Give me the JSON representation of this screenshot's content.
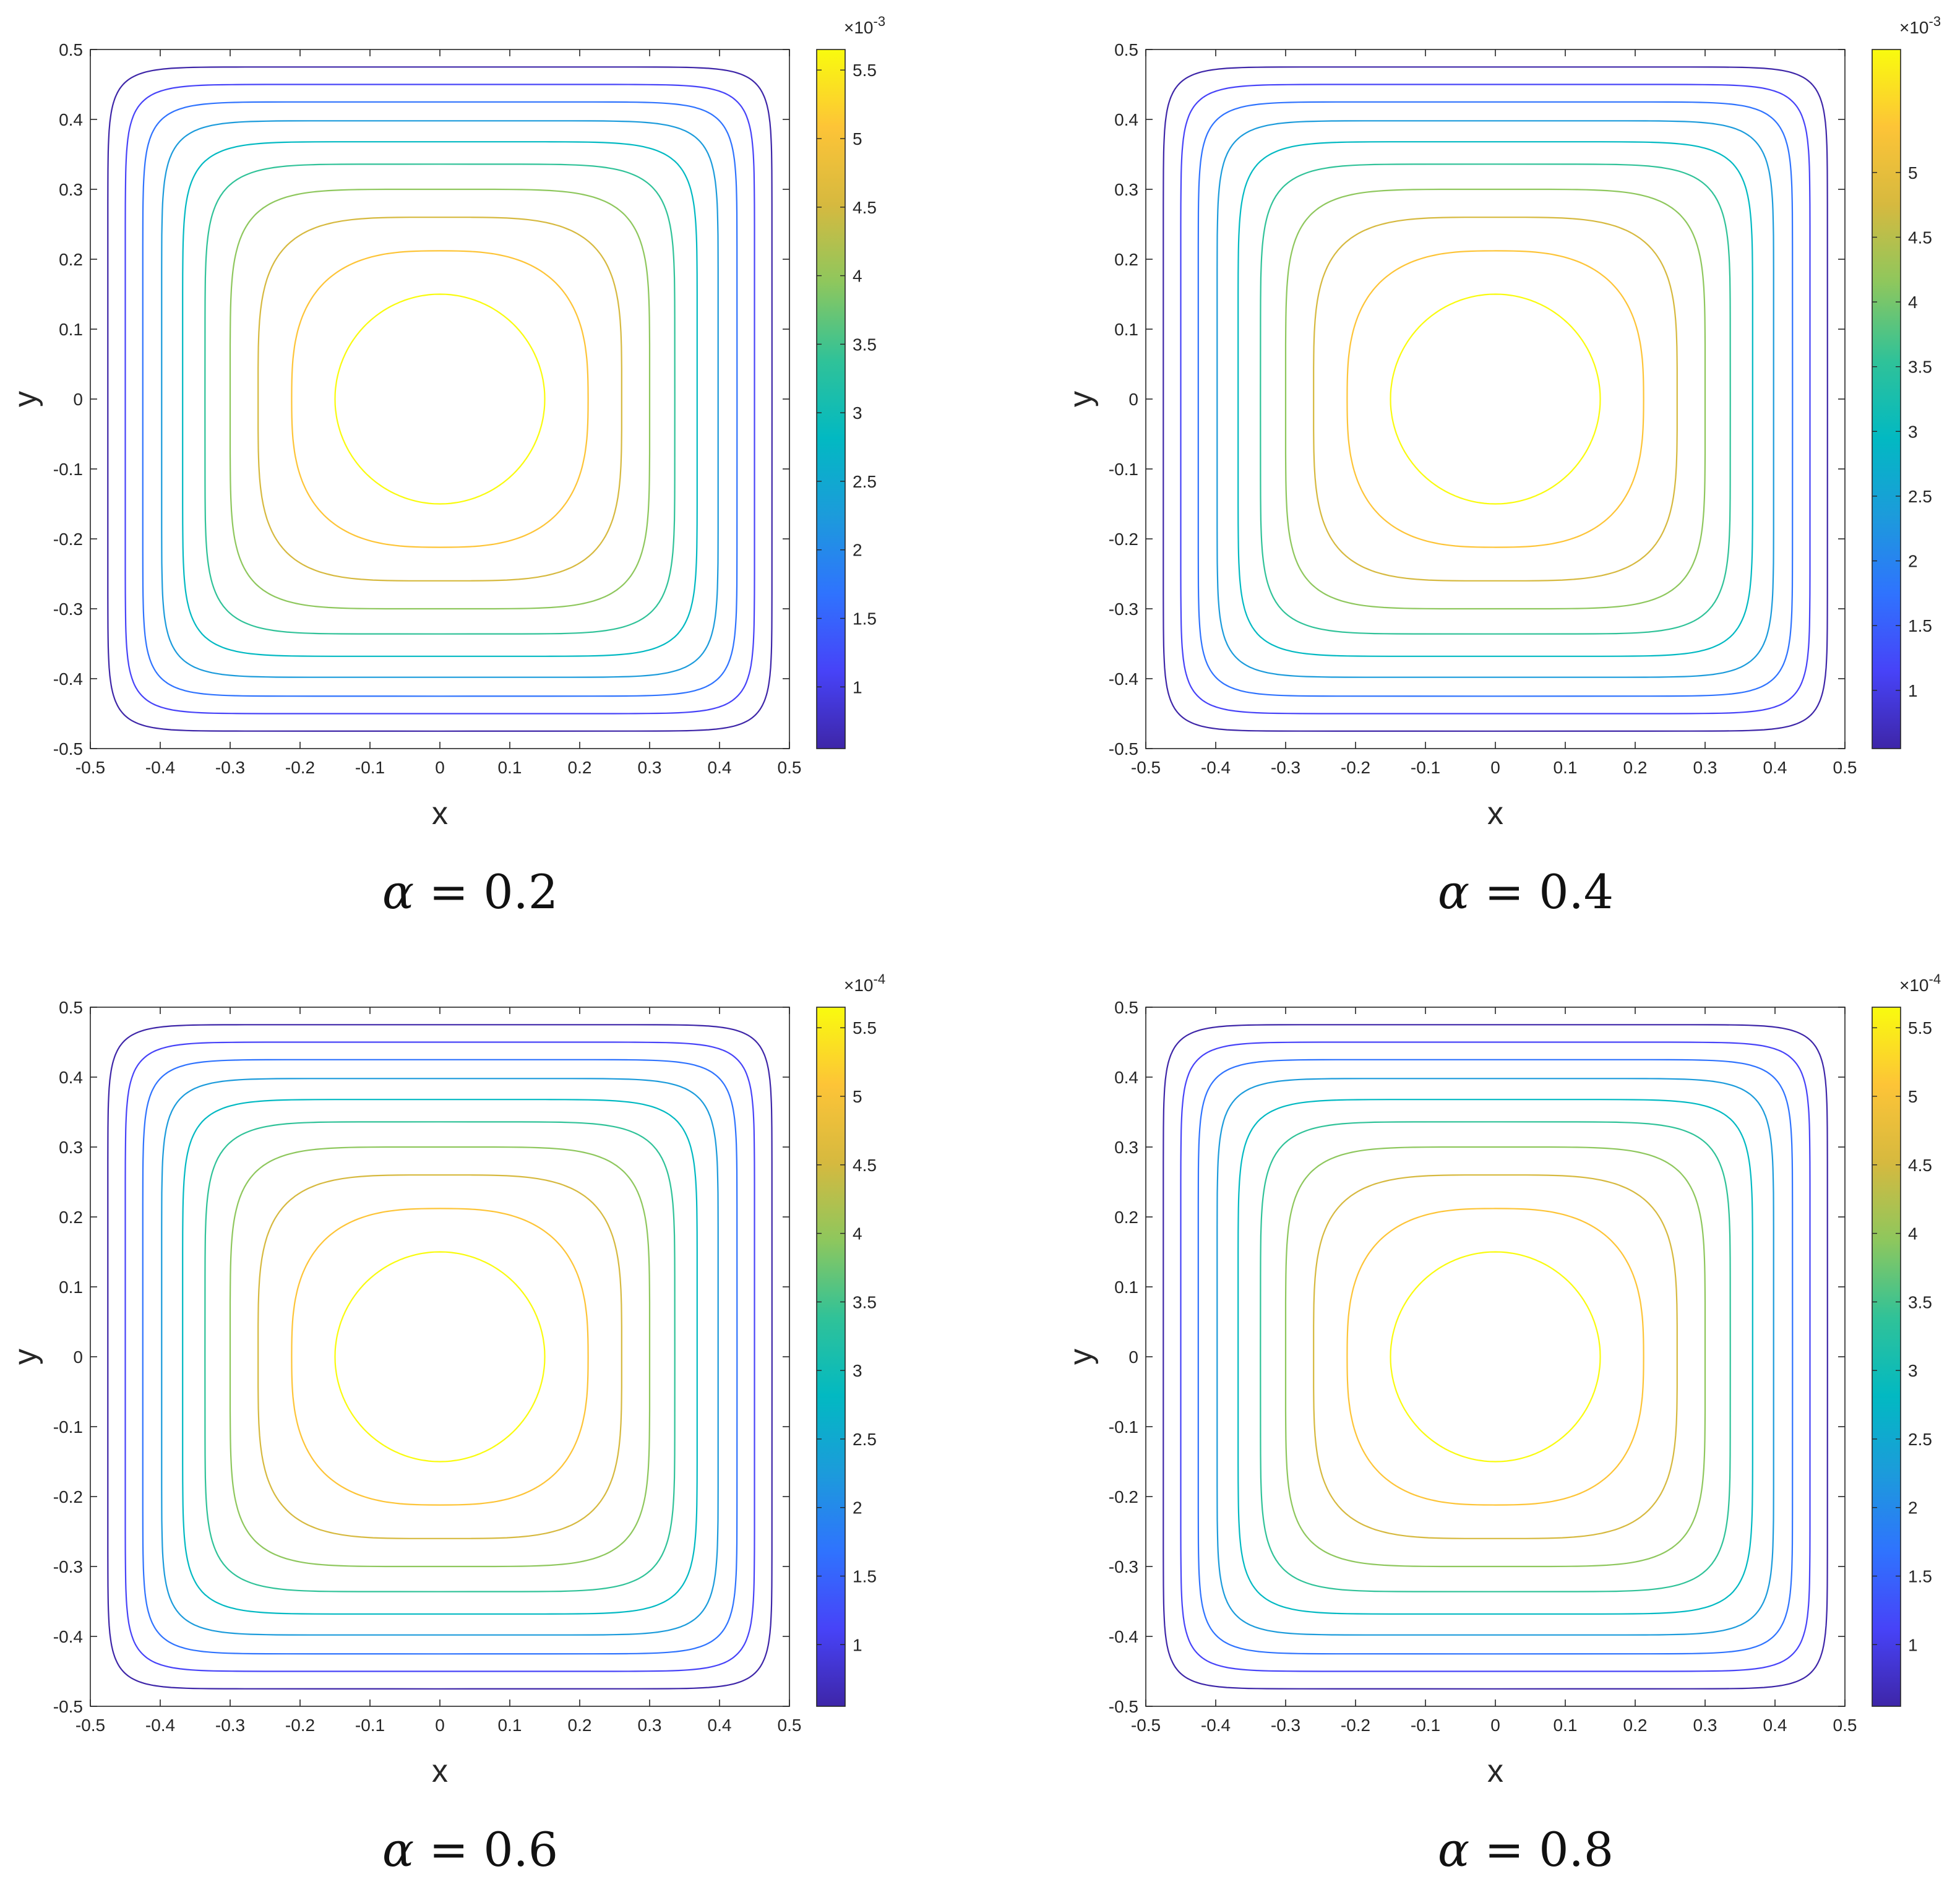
{
  "colors": {
    "parula": [
      "#3e26a8",
      "#4743f8",
      "#2f73fe",
      "#1c9bdb",
      "#02b9c2",
      "#30c298",
      "#8ec75d",
      "#d6b93f",
      "#fdc437",
      "#f9fb0e"
    ],
    "axis": "#262626",
    "background": "#ffffff"
  },
  "chart_data": [
    {
      "type": "contour",
      "caption": {
        "symbol": "α",
        "text": "= 0.2"
      },
      "xlabel": "x",
      "ylabel": "y",
      "xlim": [
        -0.5,
        0.5
      ],
      "ylim": [
        -0.5,
        0.5
      ],
      "xticks": [
        "-0.5",
        "-0.4",
        "-0.3",
        "-0.2",
        "-0.1",
        "0",
        "0.1",
        "0.2",
        "0.3",
        "0.4",
        "0.5"
      ],
      "yticks": [
        "0.5",
        "0.4",
        "0.3",
        "0.2",
        "0.1",
        "0",
        "-0.1",
        "-0.2",
        "-0.3",
        "-0.4",
        "-0.5"
      ],
      "colorbar": {
        "multiplier": "×10",
        "exponent": "-3",
        "range": [
          0.55,
          5.65
        ],
        "ticks": [
          {
            "value": 1,
            "label": "1"
          },
          {
            "value": 1.5,
            "label": "1.5"
          },
          {
            "value": 2,
            "label": "2"
          },
          {
            "value": 2.5,
            "label": "2.5"
          },
          {
            "value": 3,
            "label": "3"
          },
          {
            "value": 3.5,
            "label": "3.5"
          },
          {
            "value": 4,
            "label": "4"
          },
          {
            "value": 4.5,
            "label": "4.5"
          },
          {
            "value": 5,
            "label": "5"
          },
          {
            "value": 5.5,
            "label": "5.5"
          }
        ]
      },
      "contours": [
        {
          "level": 0.55,
          "half_width": 0.475
        },
        {
          "level": 1.12,
          "half_width": 0.45
        },
        {
          "level": 1.68,
          "half_width": 0.425
        },
        {
          "level": 2.25,
          "half_width": 0.398
        },
        {
          "level": 2.82,
          "half_width": 0.368
        },
        {
          "level": 3.38,
          "half_width": 0.336
        },
        {
          "level": 3.95,
          "half_width": 0.3
        },
        {
          "level": 4.52,
          "half_width": 0.26
        },
        {
          "level": 5.08,
          "half_width": 0.212
        },
        {
          "level": 5.65,
          "half_width": 0.15
        }
      ]
    },
    {
      "type": "contour",
      "caption": {
        "symbol": "α",
        "text": "= 0.4"
      },
      "xlabel": "x",
      "ylabel": "y",
      "xlim": [
        -0.5,
        0.5
      ],
      "ylim": [
        -0.5,
        0.5
      ],
      "xticks": [
        "-0.5",
        "-0.4",
        "-0.3",
        "-0.2",
        "-0.1",
        "0",
        "0.1",
        "0.2",
        "0.3",
        "0.4",
        "0.5"
      ],
      "yticks": [
        "0.5",
        "0.4",
        "0.3",
        "0.2",
        "0.1",
        "0",
        "-0.1",
        "-0.2",
        "-0.3",
        "-0.4",
        "-0.5"
      ],
      "colorbar": {
        "multiplier": "×10",
        "exponent": "-3",
        "range": [
          0.55,
          5.95
        ],
        "ticks": [
          {
            "value": 1,
            "label": "1"
          },
          {
            "value": 1.5,
            "label": "1.5"
          },
          {
            "value": 2,
            "label": "2"
          },
          {
            "value": 2.5,
            "label": "2.5"
          },
          {
            "value": 3,
            "label": "3"
          },
          {
            "value": 3.5,
            "label": "3.5"
          },
          {
            "value": 4,
            "label": "4"
          },
          {
            "value": 4.5,
            "label": "4.5"
          },
          {
            "value": 5,
            "label": "5"
          }
        ]
      },
      "contours": [
        {
          "level": 0.55,
          "half_width": 0.475
        },
        {
          "level": 1.15,
          "half_width": 0.45
        },
        {
          "level": 1.75,
          "half_width": 0.425
        },
        {
          "level": 2.35,
          "half_width": 0.398
        },
        {
          "level": 2.95,
          "half_width": 0.368
        },
        {
          "level": 3.55,
          "half_width": 0.336
        },
        {
          "level": 4.15,
          "half_width": 0.3
        },
        {
          "level": 4.75,
          "half_width": 0.26
        },
        {
          "level": 5.35,
          "half_width": 0.212
        },
        {
          "level": 5.95,
          "half_width": 0.15
        }
      ]
    },
    {
      "type": "contour",
      "caption": {
        "symbol": "α",
        "text": "= 0.6"
      },
      "xlabel": "x",
      "ylabel": "y",
      "xlim": [
        -0.5,
        0.5
      ],
      "ylim": [
        -0.5,
        0.5
      ],
      "xticks": [
        "-0.5",
        "-0.4",
        "-0.3",
        "-0.2",
        "-0.1",
        "0",
        "0.1",
        "0.2",
        "0.3",
        "0.4",
        "0.5"
      ],
      "yticks": [
        "0.5",
        "0.4",
        "0.3",
        "0.2",
        "0.1",
        "0",
        "-0.1",
        "-0.2",
        "-0.3",
        "-0.4",
        "-0.5"
      ],
      "colorbar": {
        "multiplier": "×10",
        "exponent": "-4",
        "range": [
          0.55,
          5.65
        ],
        "ticks": [
          {
            "value": 1,
            "label": "1"
          },
          {
            "value": 1.5,
            "label": "1.5"
          },
          {
            "value": 2,
            "label": "2"
          },
          {
            "value": 2.5,
            "label": "2.5"
          },
          {
            "value": 3,
            "label": "3"
          },
          {
            "value": 3.5,
            "label": "3.5"
          },
          {
            "value": 4,
            "label": "4"
          },
          {
            "value": 4.5,
            "label": "4.5"
          },
          {
            "value": 5,
            "label": "5"
          },
          {
            "value": 5.5,
            "label": "5.5"
          }
        ]
      },
      "contours": [
        {
          "level": 0.55,
          "half_width": 0.475
        },
        {
          "level": 1.12,
          "half_width": 0.45
        },
        {
          "level": 1.68,
          "half_width": 0.425
        },
        {
          "level": 2.25,
          "half_width": 0.398
        },
        {
          "level": 2.82,
          "half_width": 0.368
        },
        {
          "level": 3.38,
          "half_width": 0.336
        },
        {
          "level": 3.95,
          "half_width": 0.3
        },
        {
          "level": 4.52,
          "half_width": 0.26
        },
        {
          "level": 5.08,
          "half_width": 0.212
        },
        {
          "level": 5.65,
          "half_width": 0.15
        }
      ]
    },
    {
      "type": "contour",
      "caption": {
        "symbol": "α",
        "text": "= 0.8"
      },
      "xlabel": "x",
      "ylabel": "y",
      "xlim": [
        -0.5,
        0.5
      ],
      "ylim": [
        -0.5,
        0.5
      ],
      "xticks": [
        "-0.5",
        "-0.4",
        "-0.3",
        "-0.2",
        "-0.1",
        "0",
        "0.1",
        "0.2",
        "0.3",
        "0.4",
        "0.5"
      ],
      "yticks": [
        "0.5",
        "0.4",
        "0.3",
        "0.2",
        "0.1",
        "0",
        "-0.1",
        "-0.2",
        "-0.3",
        "-0.4",
        "-0.5"
      ],
      "colorbar": {
        "multiplier": "×10",
        "exponent": "-4",
        "range": [
          0.55,
          5.65
        ],
        "ticks": [
          {
            "value": 1,
            "label": "1"
          },
          {
            "value": 1.5,
            "label": "1.5"
          },
          {
            "value": 2,
            "label": "2"
          },
          {
            "value": 2.5,
            "label": "2.5"
          },
          {
            "value": 3,
            "label": "3"
          },
          {
            "value": 3.5,
            "label": "3.5"
          },
          {
            "value": 4,
            "label": "4"
          },
          {
            "value": 4.5,
            "label": "4.5"
          },
          {
            "value": 5,
            "label": "5"
          },
          {
            "value": 5.5,
            "label": "5.5"
          }
        ]
      },
      "contours": [
        {
          "level": 0.55,
          "half_width": 0.475
        },
        {
          "level": 1.12,
          "half_width": 0.45
        },
        {
          "level": 1.68,
          "half_width": 0.425
        },
        {
          "level": 2.25,
          "half_width": 0.398
        },
        {
          "level": 2.82,
          "half_width": 0.368
        },
        {
          "level": 3.38,
          "half_width": 0.336
        },
        {
          "level": 3.95,
          "half_width": 0.3
        },
        {
          "level": 4.52,
          "half_width": 0.26
        },
        {
          "level": 5.08,
          "half_width": 0.212
        },
        {
          "level": 5.65,
          "half_width": 0.15
        }
      ]
    }
  ]
}
